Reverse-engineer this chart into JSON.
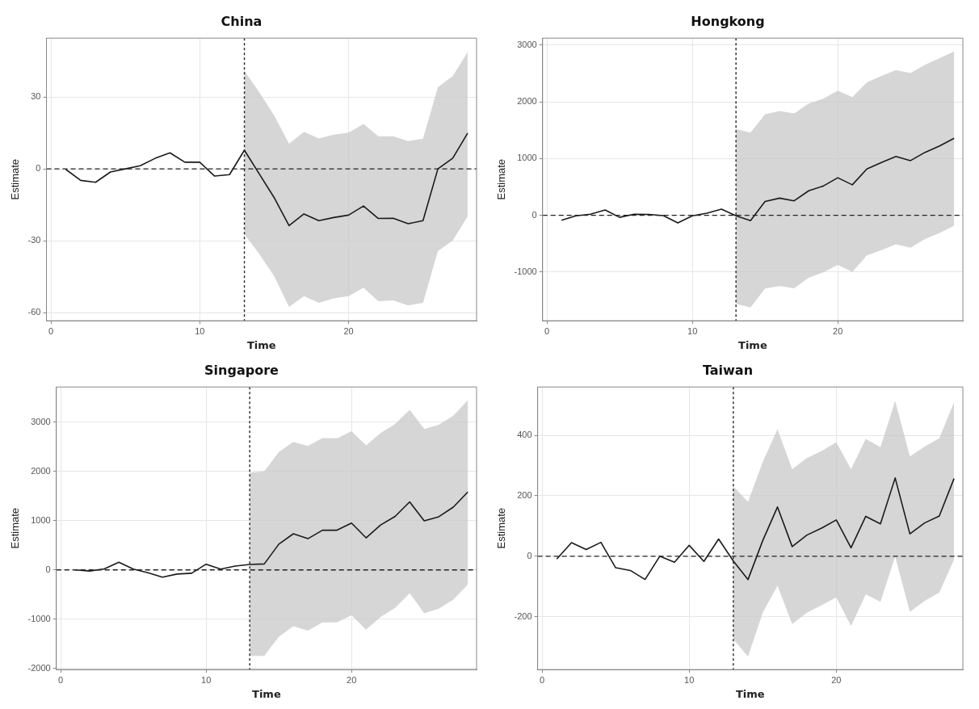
{
  "chart_data": [
    {
      "type": "line",
      "title": "China",
      "xlabel": "Time",
      "ylabel": "Estimate",
      "x": [
        1,
        2,
        3,
        4,
        5,
        6,
        7,
        8,
        9,
        10,
        11,
        12,
        13,
        14,
        15,
        16,
        17,
        18,
        19,
        20,
        21,
        22,
        23,
        24,
        25,
        26,
        27,
        28
      ],
      "xlim": [
        -0.3,
        28.6
      ],
      "xticks": [
        0,
        10,
        20
      ],
      "ylim": [
        -63.4,
        54.6
      ],
      "yticks": [
        -60,
        -30,
        0,
        30
      ],
      "grid": true,
      "legend": false,
      "series": [
        {
          "color": "#1a1a1a",
          "values": [
            -0.2,
            -4.8,
            -5.6,
            -1.3,
            0,
            1.3,
            4.4,
            6.7,
            2.8,
            2.8,
            -3,
            -2.4,
            7.8,
            -2.1,
            -12,
            -23.7,
            -18.8,
            -21.6,
            -20.3,
            -19.3,
            -15.5,
            -20.7,
            -20.6,
            -22.9,
            -21.6,
            0,
            4.5,
            14.9
          ],
          "lower": [
            null,
            null,
            null,
            null,
            null,
            null,
            null,
            null,
            null,
            null,
            null,
            null,
            -27.3,
            -35.5,
            -44.8,
            -57.6,
            -53.1,
            -55.9,
            -54.1,
            -53.1,
            -49.6,
            -55.2,
            -54.9,
            -57,
            -55.9,
            -34.3,
            -29.9,
            -19.8
          ],
          "upper": [
            null,
            null,
            null,
            null,
            null,
            null,
            null,
            null,
            null,
            null,
            null,
            null,
            40.9,
            32,
            22.3,
            10.5,
            15.5,
            12.7,
            14.3,
            15.1,
            18.8,
            13.6,
            13.6,
            11.6,
            12.6,
            34.1,
            38.7,
            48.8
          ]
        }
      ],
      "ref_lines": [
        {
          "axis": "x",
          "value": 13,
          "line_style": "dotted"
        },
        {
          "axis": "y",
          "value": 0,
          "line_style": "dashed"
        }
      ]
    },
    {
      "type": "line",
      "title": "Hongkong",
      "xlabel": "Time",
      "ylabel": "Estimate",
      "x": [
        1,
        2,
        3,
        4,
        5,
        6,
        7,
        8,
        9,
        10,
        11,
        12,
        13,
        14,
        15,
        16,
        17,
        18,
        19,
        20,
        21,
        22,
        23,
        24,
        25,
        26,
        27,
        28
      ],
      "xlim": [
        -0.3,
        28.6
      ],
      "xticks": [
        0,
        10,
        20
      ],
      "ylim": [
        -1860,
        3125
      ],
      "yticks": [
        -1000,
        0,
        1000,
        2000,
        3000
      ],
      "grid": true,
      "legend": false,
      "series": [
        {
          "color": "#1a1a1a",
          "values": [
            -88,
            -10,
            20,
            94,
            -36,
            20,
            16,
            -5,
            -135,
            -10,
            36,
            109,
            -10,
            -94,
            245,
            302,
            255,
            432,
            516,
            662,
            537,
            818,
            932,
            1037,
            964,
            1110,
            1224,
            1359
          ],
          "lower": [
            null,
            null,
            null,
            null,
            null,
            null,
            null,
            null,
            null,
            null,
            null,
            null,
            -1563,
            -1625,
            -1292,
            -1250,
            -1287,
            -1104,
            -1005,
            -875,
            -1000,
            -708,
            -615,
            -510,
            -573,
            -417,
            -313,
            -182
          ],
          "upper": [
            null,
            null,
            null,
            null,
            null,
            null,
            null,
            null,
            null,
            null,
            null,
            null,
            1521,
            1459,
            1782,
            1839,
            1797,
            1969,
            2057,
            2198,
            2083,
            2344,
            2458,
            2563,
            2510,
            2656,
            2771,
            2891
          ]
        }
      ],
      "ref_lines": [
        {
          "axis": "x",
          "value": 13,
          "line_style": "dotted"
        },
        {
          "axis": "y",
          "value": 0,
          "line_style": "dashed"
        }
      ]
    },
    {
      "type": "line",
      "title": "Singapore",
      "xlabel": "Time",
      "ylabel": "Estimate",
      "x": [
        1,
        2,
        3,
        4,
        5,
        6,
        7,
        8,
        9,
        10,
        11,
        12,
        13,
        14,
        15,
        16,
        17,
        18,
        19,
        20,
        21,
        22,
        23,
        24,
        25,
        26,
        27,
        28
      ],
      "xlim": [
        -0.3,
        28.6
      ],
      "xticks": [
        0,
        10,
        20
      ],
      "ylim": [
        -2020,
        3710
      ],
      "yticks": [
        -2000,
        -1000,
        0,
        1000,
        2000,
        3000
      ],
      "grid": true,
      "legend": false,
      "series": [
        {
          "color": "#1a1a1a",
          "values": [
            0,
            -22,
            22,
            156,
            17,
            -56,
            -145,
            -83,
            -67,
            117,
            17,
            78,
            111,
            122,
            523,
            734,
            634,
            806,
            806,
            951,
            651,
            912,
            1085,
            1380,
            996,
            1079,
            1274,
            1580
          ],
          "lower": [
            null,
            null,
            null,
            null,
            null,
            null,
            null,
            null,
            null,
            null,
            null,
            null,
            -1741,
            -1741,
            -1352,
            -1140,
            -1229,
            -1062,
            -1062,
            -918,
            -1212,
            -951,
            -768,
            -473,
            -879,
            -784,
            -601,
            -295
          ],
          "upper": [
            null,
            null,
            null,
            null,
            null,
            null,
            null,
            null,
            null,
            null,
            null,
            null,
            1974,
            1997,
            2392,
            2597,
            2514,
            2675,
            2670,
            2814,
            2525,
            2775,
            2959,
            3248,
            2859,
            2942,
            3126,
            3443
          ]
        }
      ],
      "ref_lines": [
        {
          "axis": "x",
          "value": 13,
          "line_style": "dotted"
        },
        {
          "axis": "y",
          "value": 0,
          "line_style": "dashed"
        }
      ]
    },
    {
      "type": "line",
      "title": "Taiwan",
      "xlabel": "Time",
      "ylabel": "Estimate",
      "x": [
        1,
        2,
        3,
        4,
        5,
        6,
        7,
        8,
        9,
        10,
        11,
        12,
        13,
        14,
        15,
        16,
        17,
        18,
        19,
        20,
        21,
        22,
        23,
        24,
        25,
        26,
        27,
        28
      ],
      "xlim": [
        -0.3,
        28.6
      ],
      "xticks": [
        0,
        10,
        20
      ],
      "ylim": [
        -375,
        560
      ],
      "yticks": [
        -200,
        0,
        200,
        400
      ],
      "grid": true,
      "legend": false,
      "series": [
        {
          "color": "#1a1a1a",
          "values": [
            -9,
            45,
            22,
            46,
            -38,
            -47,
            -77,
            0,
            -20,
            36,
            -17,
            57,
            -16,
            -77,
            52,
            163,
            32,
            70,
            93,
            120,
            28,
            132,
            107,
            259,
            74,
            110,
            133,
            257
          ],
          "lower": [
            null,
            null,
            null,
            null,
            null,
            null,
            null,
            null,
            null,
            null,
            null,
            null,
            -275,
            -332,
            -187,
            -97,
            -224,
            -187,
            -162,
            -136,
            -231,
            -126,
            -151,
            -1,
            -184,
            -148,
            -120,
            -11
          ],
          "upper": [
            null,
            null,
            null,
            null,
            null,
            null,
            null,
            null,
            null,
            null,
            null,
            null,
            231,
            180,
            312,
            420,
            288,
            325,
            348,
            377,
            288,
            388,
            361,
            514,
            330,
            363,
            390,
            509
          ]
        }
      ],
      "ref_lines": [
        {
          "axis": "x",
          "value": 13,
          "line_style": "dotted"
        },
        {
          "axis": "y",
          "value": 0,
          "line_style": "dashed"
        }
      ]
    }
  ]
}
